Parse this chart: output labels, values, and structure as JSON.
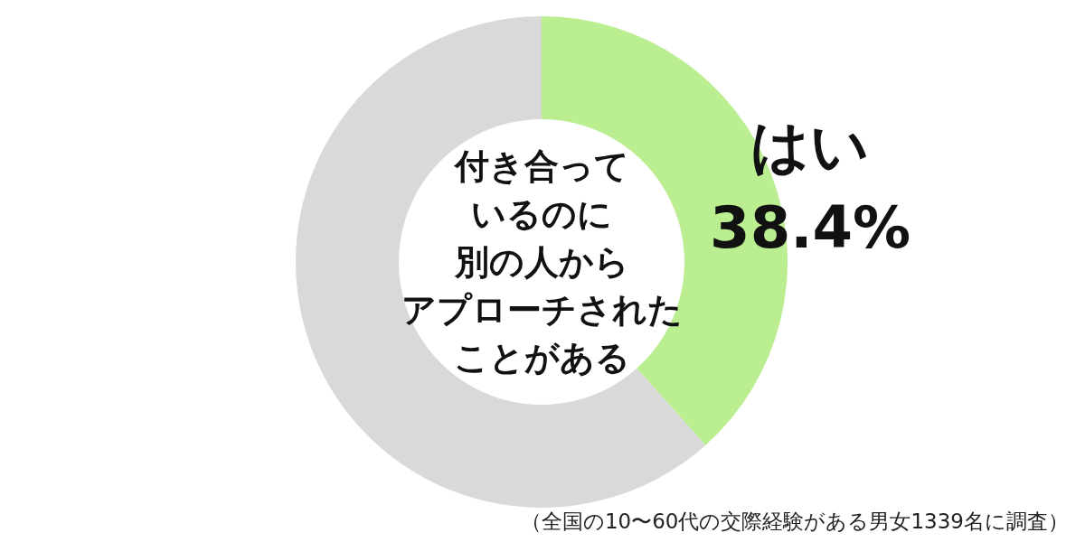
{
  "chart_data": {
    "type": "donut",
    "title": "付き合っているのに別の人からアプローチされたことがある",
    "categories": [
      "はい",
      null
    ],
    "values": [
      38.4,
      61.6
    ],
    "colors": [
      "#bbee91",
      "#d9d9d9"
    ],
    "value_labels": [
      "38.4%",
      null
    ],
    "annotations": [
      "（全国の10〜60代の交際経験がある男女1339名に調査）"
    ]
  }
}
